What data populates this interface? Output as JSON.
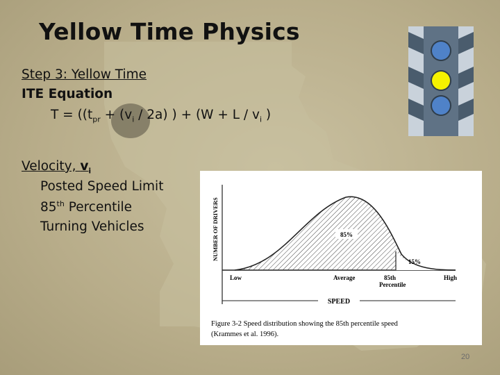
{
  "title": "Yellow Time Physics",
  "step_heading": "Step 3:  Yellow Time",
  "equation_heading": "ITE Equation",
  "equation": {
    "prefix": "T = ((t",
    "sub_pr": "pr",
    "part2": "  +  (v",
    "sub_i_1": "i",
    "part3": " / 2a) ) +  (W + L  / v",
    "sub_i_2": "i",
    "suffix": " )"
  },
  "velocity": {
    "label": "Velocity, ",
    "symbol": "v",
    "sub": "i"
  },
  "bullets": [
    "Posted Speed Limit",
    "85",
    "th",
    " Percentile",
    "Turning Vehicles"
  ],
  "figure": {
    "y_axis_label": "NUMBER OF DRIVERS",
    "x_axis_label": "SPEED",
    "labels": [
      "Low",
      "Average",
      "85th",
      "Percentile",
      "High"
    ],
    "pct_85": "85%",
    "pct_15": "15%",
    "caption_line1": "Figure 3-2  Speed distribution showing the 85th percentile speed",
    "caption_line2": "(Krammes et al. 1996)."
  },
  "traffic_light": {
    "housing_color": "#5f7285",
    "lens_top": "#4f82c8",
    "lens_middle": "#f5f200",
    "lens_bottom": "#4f82c8"
  },
  "page_number": "20"
}
